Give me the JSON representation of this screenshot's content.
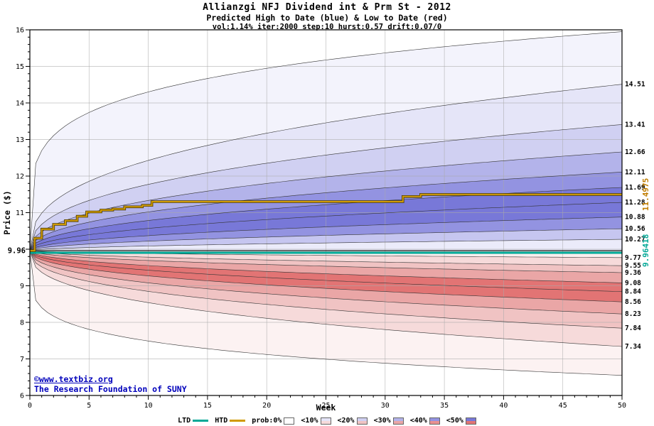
{
  "chart_data": {
    "type": "area",
    "title": "Allianzgi NFJ Dividend int & Prm St - 2012",
    "subtitle": "Predicted High to Date (blue) &  Low to Date (red)",
    "params": "vol:1.14% iter:2000 step:10 hurst:0.57 drift:0.07/0",
    "xlabel": "Week",
    "ylabel": "Price ($)",
    "xlim": [
      0,
      50
    ],
    "ylim": [
      6,
      16
    ],
    "grid": true,
    "legend_position": "bottom",
    "grid_color": "#aaaaaa",
    "x_major_ticks": [
      0,
      5,
      10,
      15,
      20,
      25,
      30,
      35,
      40,
      45,
      50
    ],
    "y_major_ticks": [
      6,
      7,
      8,
      9,
      10,
      11,
      12,
      13,
      14,
      15,
      16
    ],
    "y_tick_labels": [
      "6",
      "7",
      "8",
      "9",
      "",
      "11",
      "12",
      "13",
      "14",
      "15",
      "16"
    ],
    "start_price": 9.96,
    "start_price_label": "9.96",
    "high_fan": {
      "base": 9.96,
      "boundaries": [
        {
          "end": 15.95,
          "exp": 0.2,
          "label": ""
        },
        {
          "end": 14.51,
          "exp": 0.38,
          "label": "14.51"
        },
        {
          "end": 13.41,
          "exp": 0.4,
          "label": "13.41"
        },
        {
          "end": 12.66,
          "exp": 0.42,
          "label": "12.66"
        },
        {
          "end": 12.11,
          "exp": 0.44,
          "label": "12.11"
        },
        {
          "end": 11.69,
          "exp": 0.46,
          "label": "11.69"
        },
        {
          "end": 11.28,
          "exp": 0.48,
          "label": "11.28"
        },
        {
          "end": 10.88,
          "exp": 0.5,
          "label": "10.88"
        },
        {
          "end": 10.56,
          "exp": 0.52,
          "label": "10.56"
        },
        {
          "end": 10.27,
          "exp": 0.55,
          "label": "10.27"
        },
        {
          "end": 9.96,
          "exp": 1.0,
          "label": ""
        }
      ],
      "band_colors": [
        "#f3f3fc",
        "#e5e5f8",
        "#d0d0f2",
        "#b3b3ea",
        "#9393e1",
        "#7878d8",
        "#7878d8",
        "#9393e1",
        "#c6c6f0",
        "#ebebfa"
      ]
    },
    "low_fan": {
      "base": 9.96,
      "boundaries": [
        {
          "end": 9.96,
          "exp": 1.0,
          "label": ""
        },
        {
          "end": 9.77,
          "exp": 0.55,
          "label": "9.77"
        },
        {
          "end": 9.55,
          "exp": 0.52,
          "label": "9.55"
        },
        {
          "end": 9.36,
          "exp": 0.5,
          "label": "9.36"
        },
        {
          "end": 9.08,
          "exp": 0.48,
          "label": "9.08"
        },
        {
          "end": 8.84,
          "exp": 0.46,
          "label": "8.84"
        },
        {
          "end": 8.56,
          "exp": 0.44,
          "label": "8.56"
        },
        {
          "end": 8.23,
          "exp": 0.42,
          "label": "8.23"
        },
        {
          "end": 7.84,
          "exp": 0.4,
          "label": "7.84"
        },
        {
          "end": 7.34,
          "exp": 0.38,
          "label": "7.34"
        },
        {
          "end": 6.55,
          "exp": 0.2,
          "label": ""
        }
      ],
      "band_colors": [
        "#fbeeee",
        "#f6dada",
        "#f0c3c3",
        "#eaa6a6",
        "#e27474",
        "#e27474",
        "#eaa6a6",
        "#f0c3c3",
        "#f6dada",
        "#fcf2f2"
      ]
    },
    "htd": {
      "name": "HTD",
      "color": "#d09a00",
      "final_label": "11.4975",
      "final_value": 11.4975,
      "steps": [
        [
          0,
          9.96
        ],
        [
          0.4,
          10.3
        ],
        [
          1,
          10.55
        ],
        [
          2,
          10.68
        ],
        [
          3,
          10.78
        ],
        [
          4,
          10.9
        ],
        [
          4.8,
          11.02
        ],
        [
          6,
          11.07
        ],
        [
          7,
          11.1
        ],
        [
          8,
          11.16
        ],
        [
          9.5,
          11.2
        ],
        [
          10.3,
          11.3
        ],
        [
          31.5,
          11.44
        ],
        [
          33,
          11.4975
        ],
        [
          50,
          11.4975
        ]
      ]
    },
    "ltd": {
      "name": "LTD",
      "color": "#00a896",
      "final_label": "9.96418",
      "final_value": 9.96418,
      "steps": [
        [
          0,
          9.96
        ],
        [
          50,
          9.96418
        ]
      ]
    }
  },
  "watermark": {
    "line1": "©www.textbiz.org",
    "line2": "The Research Foundation of SUNY"
  },
  "legend": {
    "items": [
      {
        "label": "LTD",
        "type": "line",
        "color": "#00a896"
      },
      {
        "label": "HTD",
        "type": "line",
        "color": "#d09a00"
      },
      {
        "label": "prob:0%",
        "type": "box",
        "blue": "#ffffff",
        "red": "#ffffff"
      },
      {
        "label": "<10%",
        "type": "box",
        "blue": "#e5e5f8",
        "red": "#f6dada"
      },
      {
        "label": "<20%",
        "type": "box",
        "blue": "#d0d0f2",
        "red": "#f0c3c3"
      },
      {
        "label": "<30%",
        "type": "box",
        "blue": "#b3b3ea",
        "red": "#eaa6a6"
      },
      {
        "label": "<40%",
        "type": "box",
        "blue": "#9393e1",
        "red": "#e89090"
      },
      {
        "label": "<50%",
        "type": "box",
        "blue": "#7878d8",
        "red": "#e27474"
      }
    ]
  }
}
